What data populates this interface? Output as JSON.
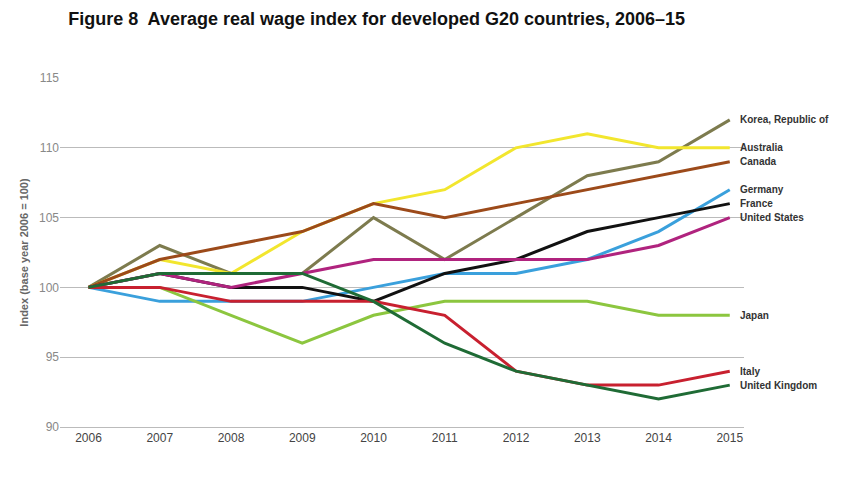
{
  "chart_data": {
    "type": "line",
    "title": "Figure 8  Average real wage index for developed G20 countries, 2006–15",
    "y_label": "Index (base year 2006 = 100)",
    "x": [
      2006,
      2007,
      2008,
      2009,
      2010,
      2011,
      2012,
      2013,
      2014,
      2015
    ],
    "xlim": [
      2005.6,
      2015.2
    ],
    "xticks": [
      2006,
      2007,
      2008,
      2009,
      2010,
      2011,
      2012,
      2013,
      2014,
      2015
    ],
    "ylim": [
      90,
      115
    ],
    "yticks": [
      90,
      95,
      100,
      105,
      110,
      115
    ],
    "grid": true,
    "series": [
      {
        "name": "Korea, Republic of",
        "color": "#7d7b4e",
        "values": [
          100,
          103,
          101,
          101,
          105,
          102,
          105,
          108,
          109,
          112
        ]
      },
      {
        "name": "Australia",
        "color": "#f2e62e",
        "values": [
          100,
          102,
          101,
          104,
          106,
          107,
          110,
          111,
          110,
          110
        ]
      },
      {
        "name": "Canada",
        "color": "#9c4a1a",
        "values": [
          100,
          102,
          103,
          104,
          106,
          105,
          106,
          107,
          108,
          109
        ]
      },
      {
        "name": "Germany",
        "color": "#3aa0dc",
        "values": [
          100,
          99,
          99,
          99,
          100,
          101,
          101,
          102,
          104,
          107
        ]
      },
      {
        "name": "France",
        "color": "#111111",
        "values": [
          100,
          101,
          100,
          100,
          99,
          101,
          102,
          104,
          105,
          106
        ]
      },
      {
        "name": "United States",
        "color": "#b0237e",
        "values": [
          100,
          101,
          100,
          101,
          102,
          102,
          102,
          102,
          103,
          105
        ]
      },
      {
        "name": "Japan",
        "color": "#8cc63f",
        "values": [
          100,
          100,
          98,
          96,
          98,
          99,
          99,
          99,
          98,
          98
        ]
      },
      {
        "name": "Italy",
        "color": "#c8202f",
        "values": [
          100,
          100,
          99,
          99,
          99,
          98,
          94,
          93,
          93,
          94
        ]
      },
      {
        "name": "United Kingdom",
        "color": "#1f6b35",
        "values": [
          100,
          101,
          101,
          101,
          99,
          96,
          94,
          93,
          92,
          93
        ]
      }
    ]
  }
}
